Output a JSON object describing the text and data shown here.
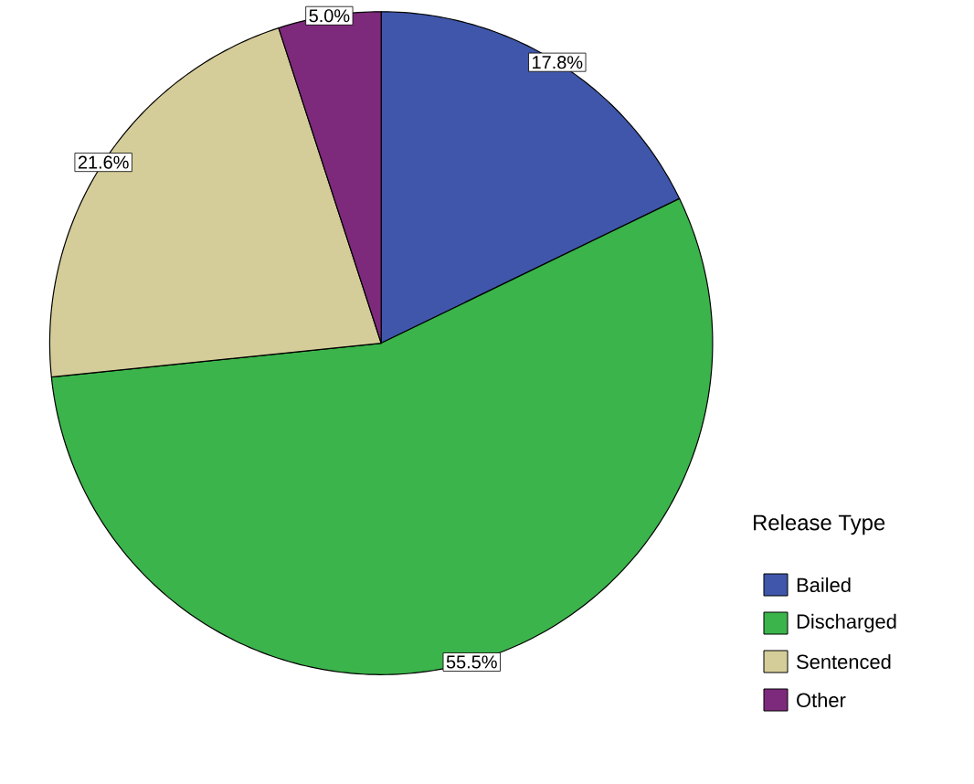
{
  "chart_data": {
    "type": "pie",
    "legend_title": "Release Type",
    "categories": [
      "Bailed",
      "Discharged",
      "Sentenced",
      "Other"
    ],
    "values": [
      17.8,
      55.5,
      21.6,
      5.0
    ],
    "colors": [
      "#3f56aa",
      "#3bb44b",
      "#d5cd99",
      "#7d2a7c"
    ],
    "value_labels": [
      "17.8%",
      "55.5%",
      "21.6%",
      "5.0%"
    ],
    "legend": "right"
  }
}
